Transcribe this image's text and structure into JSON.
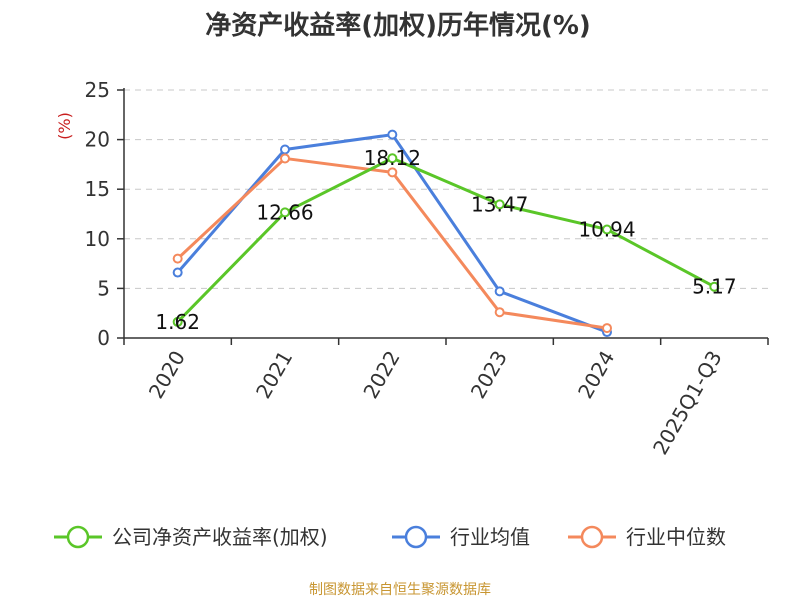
{
  "colors": {
    "company": "#5ac628",
    "industry_avg": "#4a7fdc",
    "industry_median": "#f4895c",
    "unit": "#c81e1e",
    "source": "#c89632",
    "grid": "#c8c8c8",
    "axis": "#333333"
  },
  "chart_data": {
    "type": "line",
    "title": "净资产收益率(加权)历年情况(%)",
    "unit_label": "(%)",
    "categories": [
      "2020",
      "2021",
      "2022",
      "2023",
      "2024",
      "2025Q1-Q3"
    ],
    "ylim": [
      0,
      25
    ],
    "y_ticks": [
      0,
      5,
      10,
      15,
      20,
      25
    ],
    "grid": true,
    "legend_position": "bottom",
    "series": [
      {
        "name": "公司净资产收益率(加权)",
        "color_key": "company",
        "values": [
          1.62,
          12.66,
          18.12,
          13.47,
          10.94,
          5.17
        ],
        "labels": [
          "1.62",
          "12.66",
          "18.12",
          "13.47",
          "10.94",
          "5.17"
        ]
      },
      {
        "name": "行业均值",
        "color_key": "industry_avg",
        "values": [
          6.6,
          19.0,
          20.5,
          4.7,
          0.6,
          null
        ]
      },
      {
        "name": "行业中位数",
        "color_key": "industry_median",
        "values": [
          8.0,
          18.1,
          16.7,
          2.6,
          1.0,
          null
        ]
      }
    ],
    "source": "制图数据来自恒生聚源数据库"
  }
}
